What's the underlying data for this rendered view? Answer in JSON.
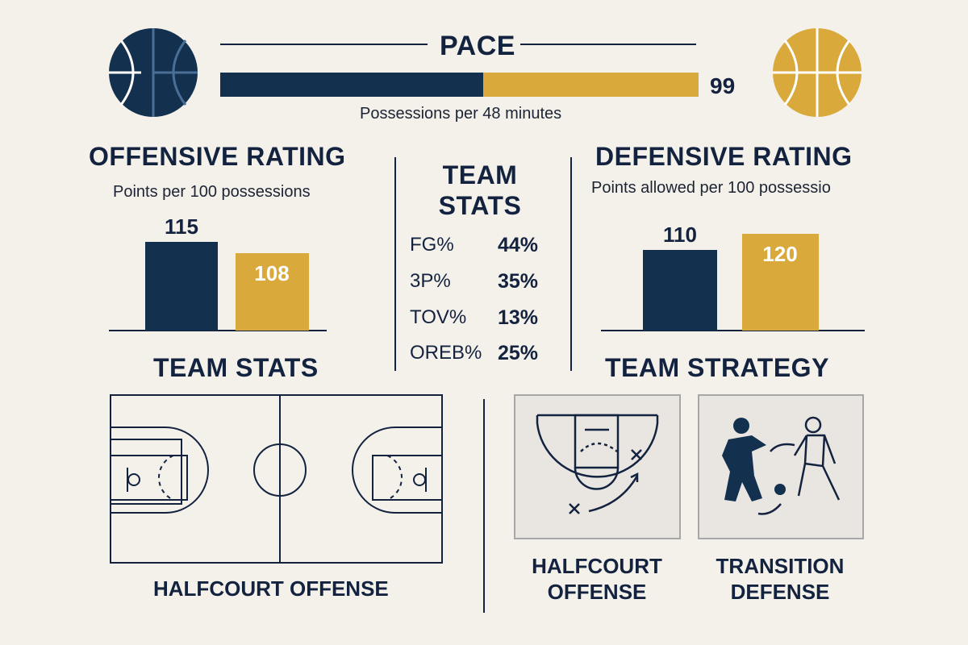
{
  "colors": {
    "navy": "#13304f",
    "gold": "#d9a93b",
    "background": "#f4f1eb"
  },
  "pace": {
    "title": "PACE",
    "value": "99",
    "caption": "Possessions per 48 minutes",
    "split_fraction": 0.55
  },
  "offense": {
    "title": "OFFENSIVE RATING",
    "subtitle": "Points per 100 possessions"
  },
  "defense": {
    "title": "DEFENSIVE RATING",
    "subtitle": "Points allowed per 100 possessio"
  },
  "team_stats_box": {
    "title_line1": "TEAM",
    "title_line2": "STATS",
    "rows": [
      {
        "label": "FG%",
        "value": "44%"
      },
      {
        "label": "3P%",
        "value": "35%"
      },
      {
        "label": "TOV%",
        "value": "13%"
      },
      {
        "label": "OREB%",
        "value": "25%"
      }
    ]
  },
  "lower": {
    "team_stats_heading": "TEAM STATS",
    "team_strategy_heading": "TEAM STRATEGY",
    "court_caption": "HALFCOURT OFFENSE",
    "strategy_cards": [
      {
        "line1": "HALFCOURT",
        "line2": "OFFENSE",
        "icon": "play-diagram-icon"
      },
      {
        "line1": "TRANSITION",
        "line2": "DEFENSE",
        "icon": "players-icon"
      }
    ]
  },
  "chart_data": [
    {
      "type": "bar",
      "title": "OFFENSIVE RATING",
      "categories": [
        "navy team",
        "gold team"
      ],
      "values": [
        115,
        108
      ]
    },
    {
      "type": "bar",
      "title": "DEFENSIVE RATING",
      "categories": [
        "navy team",
        "gold team"
      ],
      "values": [
        110,
        120
      ]
    }
  ]
}
